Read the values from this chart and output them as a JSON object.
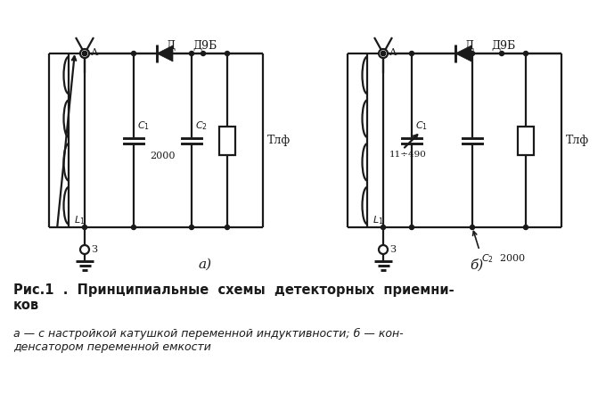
{
  "bg_color": "#ffffff",
  "line_color": "#1a1a1a",
  "line_width": 1.6,
  "title_text": "Рис.1  .  Принципиальные  схемы  детекторных  приемни-\nков",
  "subtitle_text": "а — с настройкой катушкой переменной индуктивности; б — кон-\nденсатором переменной емкости",
  "label_a": "а)",
  "label_b": "б)"
}
